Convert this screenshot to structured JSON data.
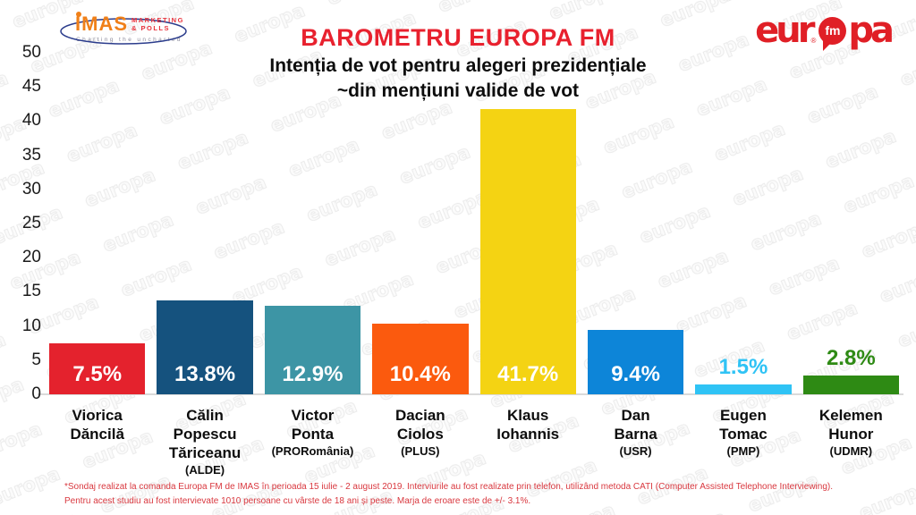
{
  "header": {
    "title": "BAROMETRU EUROPA FM",
    "subtitle1": "Intenția de vot pentru alegeri prezidențiale",
    "subtitle2": "~din mențiuni valide de vot",
    "imas_logo": {
      "name": "IMAS",
      "sub1": "MARKETING",
      "sub2": "& POLLS",
      "tagline": "Charting the uncharted"
    },
    "europafm_logo": {
      "part1": "eur",
      "reg": "®",
      "badge": "fm",
      "part2": "pa"
    }
  },
  "watermark": {
    "text": "europa"
  },
  "chart_data": {
    "type": "bar",
    "title": "BAROMETRU EUROPA FM",
    "subtitle": "Intenția de vot pentru alegeri prezidențiale ~din mențiuni valide de vot",
    "xlabel": "",
    "ylabel": "",
    "ylim": [
      0,
      50
    ],
    "yticks": [
      50,
      45,
      40,
      35,
      30,
      25,
      20,
      15,
      10,
      5,
      0
    ],
    "grid": false,
    "legend": false,
    "bars": [
      {
        "name": "Viorica\nDăncilă",
        "party": "",
        "value": 7.5,
        "label": "7.5%",
        "color": "#e4222d",
        "label_position": "inside"
      },
      {
        "name": "Călin\nPopescu\nTăriceanu",
        "party": "(ALDE)",
        "value": 13.8,
        "label": "13.8%",
        "color": "#15527e",
        "label_position": "inside"
      },
      {
        "name": "Victor\nPonta",
        "party": "(PRORomânia)",
        "value": 12.9,
        "label": "12.9%",
        "color": "#3d95a5",
        "label_position": "inside"
      },
      {
        "name": "Dacian\nCiolos",
        "party": "(PLUS)",
        "value": 10.4,
        "label": "10.4%",
        "color": "#fb5a0e",
        "label_position": "inside"
      },
      {
        "name": "Klaus\nIohannis",
        "party": "",
        "value": 41.7,
        "label": "41.7%",
        "color": "#f4d313",
        "label_position": "inside"
      },
      {
        "name": "Dan\nBarna",
        "party": "(USR)",
        "value": 9.4,
        "label": "9.4%",
        "color": "#0d85d8",
        "label_position": "inside"
      },
      {
        "name": "Eugen\nTomac",
        "party": "(PMP)",
        "value": 1.5,
        "label": "1.5%",
        "color": "#2fc3f5",
        "label_position": "above"
      },
      {
        "name": "Kelemen\nHunor",
        "party": "(UDMR)",
        "value": 2.8,
        "label": "2.8%",
        "color": "#2e8a14",
        "label_position": "above"
      }
    ]
  },
  "footer": {
    "line1": "*Sondaj realizat la comanda Europa FM de IMAS în perioada 15 iulie - 2 august 2019. Interviurile au fost realizate prin telefon, utilizând metoda CATI (Computer Assisted Telephone Interviewing).",
    "line2": "Pentru acest studiu au fost intervievate 1010 persoane cu vârste de 18 ani și peste. Marja de eroare este de +/- 3.1%."
  }
}
